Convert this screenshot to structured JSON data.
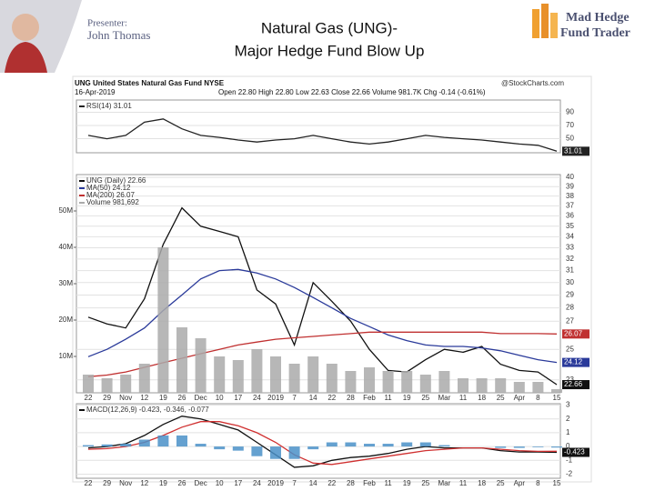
{
  "slide": {
    "title": "Natural Gas (UNG)-",
    "subtitle": "Major Hedge Fund Blow Up",
    "presenter_label": "Presenter:",
    "presenter_name": "John Thomas",
    "logo_line1": "Mad Hedge",
    "logo_line2": "Fund Trader"
  },
  "header": {
    "symbol": "UNG United States Natural Gas Fund NYSE",
    "source": "@StockCharts.com",
    "date": "16-Apr-2019",
    "quote": "Open 22.80 High 22.80 Low 22.63 Close 22.66 Volume 981.7K Chg -0.14 (-0.61%)"
  },
  "chart_data": [
    {
      "type": "line",
      "ylim": [
        28.7,
        108.7
      ],
      "yticks": [
        50,
        70,
        90
      ],
      "grid": true,
      "series": [
        {
          "name": "RSI(14) 31.01",
          "color": "#222222",
          "end_label": "31.01",
          "values": [
            55,
            50,
            55,
            75,
            80,
            65,
            55,
            52,
            48,
            45,
            48,
            50,
            55,
            50,
            45,
            42,
            45,
            50,
            55,
            52,
            50,
            48,
            45,
            42,
            40,
            31
          ]
        }
      ]
    },
    {
      "type": "line",
      "log_scale": true,
      "ylim": [
        22.2,
        40.3
      ],
      "yticks": [
        23,
        25,
        27,
        28,
        29,
        30,
        31,
        32,
        33,
        34,
        35,
        36,
        37,
        38,
        39,
        40
      ],
      "y2lim": [
        0,
        60
      ],
      "y2ticks": [
        {
          "value": 10,
          "label": "10M"
        },
        {
          "value": 20,
          "label": "20M"
        },
        {
          "value": 30,
          "label": "30M"
        },
        {
          "value": 40,
          "label": "40M"
        },
        {
          "value": 50,
          "label": "50M"
        }
      ],
      "grid": true,
      "categories": [
        "22",
        "29",
        "Nov",
        "12",
        "19",
        "26",
        "Dec",
        "10",
        "17",
        "24",
        "2019",
        "7",
        "14",
        "22",
        "28",
        "Feb",
        "11",
        "19",
        "25",
        "Mar",
        "11",
        "18",
        "25",
        "Apr",
        "8",
        "15"
      ],
      "series": [
        {
          "name": "UNG (Daily) 22.66",
          "color": "#111111",
          "end_label": "22.66",
          "values": [
            27.3,
            26.8,
            26.5,
            28.7,
            33.3,
            36.8,
            35.0,
            34.5,
            34.0,
            29.4,
            28.3,
            25.3,
            30.0,
            28.5,
            27.0,
            25.0,
            23.6,
            23.5,
            24.3,
            25.0,
            24.8,
            25.2,
            24.0,
            23.6,
            23.5,
            22.7
          ]
        },
        {
          "name": "MA(50) 24.12",
          "color": "#2a3a9a",
          "end_label": "24.12",
          "values": [
            24.5,
            25,
            25.7,
            26.5,
            27.8,
            29,
            30.3,
            31.0,
            31.1,
            30.8,
            30.3,
            29.6,
            28.8,
            28.0,
            27.2,
            26.6,
            26.0,
            25.6,
            25.3,
            25.2,
            25.2,
            25.1,
            24.9,
            24.6,
            24.3,
            24.12
          ]
        },
        {
          "name": "MA(200) 26.07",
          "color": "#c03030",
          "end_label": "26.07",
          "values": [
            23.2,
            23.3,
            23.5,
            23.8,
            24.1,
            24.4,
            24.7,
            25.0,
            25.3,
            25.5,
            25.7,
            25.8,
            25.9,
            26.0,
            26.1,
            26.2,
            26.2,
            26.2,
            26.2,
            26.2,
            26.2,
            26.2,
            26.1,
            26.1,
            26.1,
            26.07
          ]
        },
        {
          "name": "Volume 981,692",
          "color": "#aaaaaa",
          "axis": "y2",
          "kind": "bar",
          "values": [
            5,
            4,
            5,
            8,
            40,
            18,
            15,
            10,
            9,
            12,
            10,
            8,
            10,
            8,
            6,
            7,
            6,
            6,
            5,
            6,
            4,
            4,
            4,
            3,
            3,
            1
          ]
        }
      ]
    },
    {
      "type": "line",
      "ylim": [
        -2.3,
        3.1
      ],
      "yticks": [
        -2,
        -1,
        0,
        1,
        2,
        3
      ],
      "grid": true,
      "categories": [
        "22",
        "29",
        "Nov",
        "12",
        "19",
        "26",
        "Dec",
        "10",
        "17",
        "24",
        "2019",
        "7",
        "14",
        "22",
        "28",
        "Feb",
        "11",
        "19",
        "25",
        "Mar",
        "11",
        "18",
        "25",
        "Apr",
        "8",
        "15"
      ],
      "series": [
        {
          "name": "MACD(12,26,9) -0.423, -0.346, -0.077",
          "color": "#111111",
          "end_label": "-0.423",
          "values": [
            -0.1,
            0.0,
            0.2,
            0.8,
            1.6,
            2.2,
            2.0,
            1.6,
            1.2,
            0.3,
            -0.6,
            -1.5,
            -1.4,
            -1.0,
            -0.8,
            -0.7,
            -0.5,
            -0.2,
            0.0,
            -0.1,
            -0.1,
            -0.1,
            -0.3,
            -0.4,
            -0.4,
            -0.423
          ]
        },
        {
          "color": "#d03030",
          "values": [
            -0.2,
            -0.15,
            0,
            0.3,
            0.8,
            1.4,
            1.8,
            1.8,
            1.5,
            1.0,
            0.3,
            -0.6,
            -1.2,
            -1.3,
            -1.1,
            -0.9,
            -0.7,
            -0.5,
            -0.3,
            -0.2,
            -0.1,
            -0.1,
            -0.2,
            -0.3,
            -0.35,
            -0.346
          ]
        },
        {
          "color": "#4a90c8",
          "kind": "bar",
          "values": [
            0.1,
            0.15,
            0.2,
            0.5,
            0.8,
            0.8,
            0.2,
            -0.2,
            -0.3,
            -0.7,
            -0.9,
            -0.9,
            -0.2,
            0.3,
            0.3,
            0.2,
            0.2,
            0.3,
            0.3,
            0.1,
            0,
            0,
            -0.1,
            -0.1,
            -0.05,
            -0.077
          ]
        }
      ]
    }
  ]
}
